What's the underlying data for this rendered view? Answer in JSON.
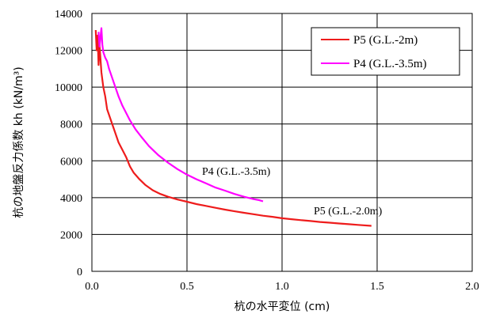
{
  "chart_data": {
    "type": "line",
    "title": "",
    "xlabel": "杭の水平変位 (cm)",
    "ylabel": "杭の地盤反力係数 kh (kN/m³)",
    "xlim": [
      0,
      2.0
    ],
    "ylim": [
      0,
      14000
    ],
    "xticks": [
      "0.0",
      "0.5",
      "1.0",
      "1.5",
      "2.0"
    ],
    "yticks": [
      "0",
      "2000",
      "4000",
      "6000",
      "8000",
      "10000",
      "12000",
      "14000"
    ],
    "grid": true,
    "legend_position": "top-right",
    "legend": [
      "P5 (G.L.-2m)",
      "P4 (G.L.-3.5m)"
    ],
    "series": [
      {
        "name": "P5 (G.L.-2m)",
        "color": "#ee1c1c",
        "annotation": "P5 (G.L.-2.0m)",
        "points": [
          [
            0.02,
            13100
          ],
          [
            0.025,
            12000
          ],
          [
            0.03,
            12800
          ],
          [
            0.035,
            11200
          ],
          [
            0.04,
            12300
          ],
          [
            0.05,
            10800
          ],
          [
            0.06,
            10000
          ],
          [
            0.07,
            9500
          ],
          [
            0.08,
            8800
          ],
          [
            0.09,
            8500
          ],
          [
            0.1,
            8200
          ],
          [
            0.12,
            7600
          ],
          [
            0.14,
            7000
          ],
          [
            0.16,
            6600
          ],
          [
            0.18,
            6200
          ],
          [
            0.2,
            5700
          ],
          [
            0.22,
            5350
          ],
          [
            0.25,
            5000
          ],
          [
            0.28,
            4700
          ],
          [
            0.32,
            4400
          ],
          [
            0.36,
            4200
          ],
          [
            0.4,
            4050
          ],
          [
            0.45,
            3900
          ],
          [
            0.5,
            3780
          ],
          [
            0.55,
            3650
          ],
          [
            0.6,
            3550
          ],
          [
            0.65,
            3450
          ],
          [
            0.7,
            3350
          ],
          [
            0.75,
            3260
          ],
          [
            0.8,
            3180
          ],
          [
            0.85,
            3100
          ],
          [
            0.9,
            3020
          ],
          [
            0.95,
            2960
          ],
          [
            1.0,
            2880
          ],
          [
            1.05,
            2830
          ],
          [
            1.1,
            2780
          ],
          [
            1.15,
            2730
          ],
          [
            1.2,
            2680
          ],
          [
            1.25,
            2640
          ],
          [
            1.3,
            2600
          ],
          [
            1.35,
            2560
          ],
          [
            1.4,
            2520
          ],
          [
            1.47,
            2470
          ]
        ]
      },
      {
        "name": "P4 (G.L.-3.5m)",
        "color": "#ff00ff",
        "annotation": "P4 (G.L.-3.5m)",
        "points": [
          [
            0.035,
            13000
          ],
          [
            0.04,
            12200
          ],
          [
            0.045,
            12700
          ],
          [
            0.05,
            13200
          ],
          [
            0.055,
            12300
          ],
          [
            0.06,
            11900
          ],
          [
            0.07,
            11600
          ],
          [
            0.08,
            11400
          ],
          [
            0.09,
            11000
          ],
          [
            0.1,
            10700
          ],
          [
            0.12,
            10100
          ],
          [
            0.14,
            9500
          ],
          [
            0.16,
            9000
          ],
          [
            0.18,
            8600
          ],
          [
            0.2,
            8200
          ],
          [
            0.23,
            7700
          ],
          [
            0.26,
            7300
          ],
          [
            0.3,
            6800
          ],
          [
            0.35,
            6300
          ],
          [
            0.4,
            5900
          ],
          [
            0.45,
            5550
          ],
          [
            0.5,
            5250
          ],
          [
            0.55,
            5000
          ],
          [
            0.6,
            4780
          ],
          [
            0.65,
            4550
          ],
          [
            0.7,
            4380
          ],
          [
            0.75,
            4200
          ],
          [
            0.8,
            4050
          ],
          [
            0.85,
            3920
          ],
          [
            0.88,
            3860
          ],
          [
            0.9,
            3800
          ]
        ]
      }
    ]
  }
}
